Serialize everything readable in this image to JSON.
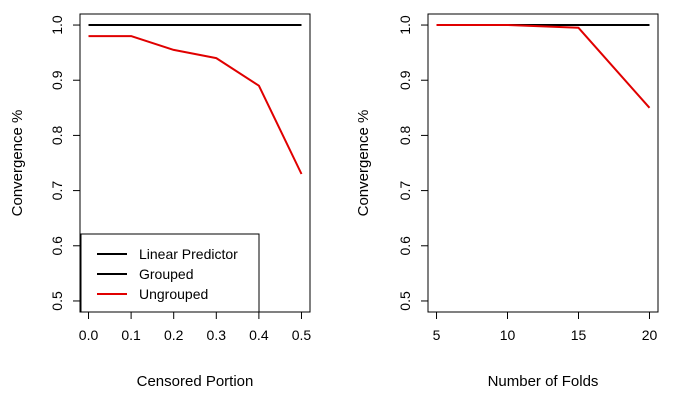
{
  "chart_data": [
    {
      "type": "line",
      "xlabel": "Censored Portion",
      "ylabel": "Convergence %",
      "xlim": [
        -0.02,
        0.52
      ],
      "ylim": [
        0.48,
        1.02
      ],
      "xticks": [
        0.0,
        0.1,
        0.2,
        0.3,
        0.4,
        0.5
      ],
      "xtick_labels": [
        "0.0",
        "0.1",
        "0.2",
        "0.3",
        "0.4",
        "0.5"
      ],
      "yticks": [
        0.5,
        0.6,
        0.7,
        0.8,
        0.9,
        1.0
      ],
      "ytick_labels": [
        "0.5",
        "0.6",
        "0.7",
        "0.8",
        "0.9",
        "1.0"
      ],
      "x": [
        0.0,
        0.1,
        0.2,
        0.3,
        0.4,
        0.5
      ],
      "series": [
        {
          "name": "Linear Predictor",
          "color": "#000000",
          "values": [
            1.0,
            1.0,
            1.0,
            1.0,
            1.0,
            1.0
          ]
        },
        {
          "name": "Grouped",
          "color": "#000000",
          "values": [
            1.0,
            1.0,
            1.0,
            1.0,
            1.0,
            1.0
          ]
        },
        {
          "name": "Ungrouped",
          "color": "#e00000",
          "values": [
            0.98,
            0.98,
            0.955,
            0.94,
            0.89,
            0.73
          ]
        }
      ],
      "legend": {
        "placement": "bottom-left",
        "entries": [
          {
            "label": "Linear Predictor",
            "color": "#000000"
          },
          {
            "label": "Grouped",
            "color": "#000000"
          },
          {
            "label": "Ungrouped",
            "color": "#e00000"
          }
        ]
      },
      "grid": false
    },
    {
      "type": "line",
      "xlabel": "Number of Folds",
      "ylabel": "Convergence %",
      "xlim": [
        4.4,
        20.6
      ],
      "ylim": [
        0.48,
        1.02
      ],
      "xticks": [
        5,
        10,
        15,
        20
      ],
      "xtick_labels": [
        "5",
        "10",
        "15",
        "20"
      ],
      "yticks": [
        0.5,
        0.6,
        0.7,
        0.8,
        0.9,
        1.0
      ],
      "ytick_labels": [
        "0.5",
        "0.6",
        "0.7",
        "0.8",
        "0.9",
        "1.0"
      ],
      "x": [
        5,
        10,
        15,
        20
      ],
      "series": [
        {
          "name": "Linear Predictor",
          "color": "#000000",
          "values": [
            1.0,
            1.0,
            1.0,
            1.0
          ]
        },
        {
          "name": "Grouped",
          "color": "#000000",
          "values": [
            1.0,
            1.0,
            1.0,
            1.0
          ]
        },
        {
          "name": "Ungrouped",
          "color": "#e00000",
          "values": [
            1.0,
            1.0,
            0.995,
            0.85
          ]
        }
      ],
      "grid": false
    }
  ]
}
